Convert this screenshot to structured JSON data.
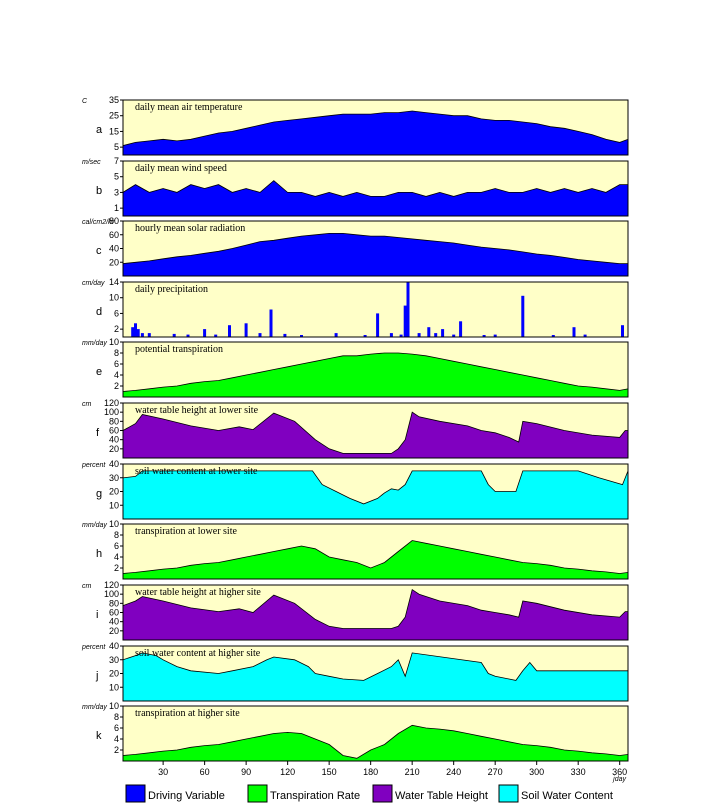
{
  "chart_data": {
    "type": "area",
    "x_axis": {
      "ticks": [
        30,
        60,
        90,
        120,
        150,
        180,
        210,
        240,
        270,
        300,
        330,
        360
      ],
      "label": "jday",
      "range": [
        1,
        366
      ]
    },
    "panels": [
      {
        "letter": "a",
        "title": "daily mean air temperature",
        "unit": "C",
        "yticks": [
          5,
          15,
          25,
          35
        ],
        "ylim": [
          0,
          35
        ],
        "color": "#0000ff",
        "kind": "area",
        "x": [
          1,
          10,
          20,
          30,
          40,
          50,
          60,
          70,
          80,
          90,
          100,
          110,
          120,
          130,
          140,
          150,
          160,
          170,
          180,
          190,
          200,
          210,
          220,
          230,
          240,
          250,
          260,
          270,
          280,
          290,
          300,
          310,
          320,
          330,
          340,
          350,
          360,
          366
        ],
        "values": [
          6,
          8,
          9,
          10,
          9,
          10,
          12,
          14,
          15,
          17,
          19,
          21,
          22,
          23,
          24,
          25,
          26,
          26,
          26,
          27,
          27,
          28,
          27,
          26,
          25,
          25,
          23,
          22,
          22,
          21,
          20,
          18,
          17,
          15,
          13,
          10,
          8,
          10
        ]
      },
      {
        "letter": "b",
        "title": "daily mean wind speed",
        "unit": "m/sec",
        "yticks": [
          1,
          3,
          5,
          7
        ],
        "ylim": [
          0,
          7
        ],
        "color": "#0000ff",
        "kind": "area",
        "x": [
          1,
          10,
          20,
          30,
          40,
          50,
          60,
          70,
          80,
          90,
          100,
          110,
          120,
          130,
          140,
          150,
          160,
          170,
          180,
          190,
          200,
          210,
          220,
          230,
          240,
          250,
          260,
          270,
          280,
          290,
          300,
          310,
          320,
          330,
          340,
          350,
          360,
          366
        ],
        "values": [
          3,
          4,
          3,
          3.5,
          3,
          4,
          3.5,
          4,
          3,
          3.5,
          3,
          4.5,
          3,
          3,
          2.5,
          3,
          2.5,
          3,
          2.5,
          2.5,
          3,
          3,
          2.5,
          3,
          2.5,
          3,
          3,
          3.5,
          3,
          3,
          3.5,
          3,
          3.5,
          3,
          3.5,
          3,
          4,
          4
        ]
      },
      {
        "letter": "c",
        "title": "hourly mean solar radiation",
        "unit": "cal/cm2/hr",
        "yticks": [
          20,
          40,
          60,
          80
        ],
        "ylim": [
          0,
          80
        ],
        "color": "#0000ff",
        "kind": "area",
        "x": [
          1,
          10,
          20,
          30,
          40,
          50,
          60,
          70,
          80,
          90,
          100,
          110,
          120,
          130,
          140,
          150,
          160,
          170,
          180,
          190,
          200,
          210,
          220,
          230,
          240,
          250,
          260,
          270,
          280,
          290,
          300,
          310,
          320,
          330,
          340,
          350,
          360,
          366
        ],
        "values": [
          18,
          20,
          22,
          25,
          28,
          30,
          33,
          36,
          40,
          45,
          50,
          52,
          55,
          58,
          60,
          62,
          62,
          60,
          58,
          58,
          56,
          54,
          52,
          50,
          48,
          45,
          42,
          40,
          38,
          35,
          32,
          30,
          27,
          24,
          22,
          20,
          18,
          18
        ]
      },
      {
        "letter": "d",
        "title": "daily precipitation",
        "unit": "cm/day",
        "yticks": [
          2,
          6,
          10,
          14
        ],
        "ylim": [
          0,
          14
        ],
        "color": "#0000ff",
        "kind": "bars",
        "x": [
          8,
          10,
          12,
          15,
          20,
          38,
          48,
          60,
          68,
          78,
          90,
          100,
          108,
          118,
          130,
          155,
          176,
          185,
          195,
          202,
          205,
          207,
          215,
          222,
          227,
          232,
          240,
          245,
          262,
          270,
          290,
          312,
          327,
          335,
          362
        ],
        "values": [
          2.5,
          3.5,
          2,
          1,
          1,
          0.8,
          0.6,
          2,
          0.6,
          3,
          3.5,
          1,
          7,
          0.8,
          0.5,
          1,
          0.5,
          6,
          1,
          0.6,
          8,
          14,
          1,
          2.5,
          1,
          2,
          0.6,
          4,
          0.5,
          0.6,
          10.5,
          0.5,
          2.5,
          0.6,
          3
        ]
      },
      {
        "letter": "e",
        "title": "potential transpiration",
        "unit": "mm/day",
        "yticks": [
          2,
          4,
          6,
          8,
          10
        ],
        "ylim": [
          0,
          10
        ],
        "color": "#00ff00",
        "kind": "area",
        "x": [
          1,
          10,
          20,
          30,
          40,
          50,
          60,
          70,
          80,
          90,
          100,
          110,
          120,
          130,
          140,
          150,
          160,
          170,
          180,
          190,
          200,
          210,
          220,
          230,
          240,
          250,
          260,
          270,
          280,
          290,
          300,
          310,
          320,
          330,
          340,
          350,
          360,
          366
        ],
        "values": [
          1,
          1.2,
          1.5,
          1.8,
          2,
          2.5,
          2.8,
          3,
          3.5,
          4,
          4.5,
          5,
          5.5,
          6,
          6.5,
          7,
          7.5,
          7.5,
          7.8,
          8,
          8,
          7.8,
          7.5,
          7,
          6.5,
          6,
          5.5,
          5,
          4.5,
          4,
          3.5,
          3,
          2.5,
          2,
          1.8,
          1.5,
          1.2,
          1.5
        ]
      },
      {
        "letter": "f",
        "title": "water table height at lower site",
        "unit": "cm",
        "yticks": [
          20,
          40,
          60,
          80,
          100,
          120
        ],
        "ylim": [
          0,
          120
        ],
        "color": "#8000c0",
        "kind": "area",
        "x": [
          1,
          10,
          15,
          30,
          50,
          70,
          85,
          95,
          110,
          125,
          140,
          150,
          160,
          175,
          185,
          195,
          200,
          205,
          210,
          215,
          230,
          250,
          260,
          270,
          280,
          287,
          290,
          300,
          320,
          340,
          360,
          364,
          366
        ],
        "values": [
          60,
          75,
          95,
          85,
          70,
          60,
          68,
          62,
          98,
          80,
          40,
          20,
          10,
          10,
          10,
          10,
          20,
          40,
          100,
          90,
          80,
          70,
          60,
          55,
          45,
          35,
          80,
          75,
          60,
          50,
          45,
          60,
          60
        ]
      },
      {
        "letter": "g",
        "title": "soil water content at lower site",
        "unit": "percent",
        "yticks": [
          10,
          20,
          30,
          40
        ],
        "ylim": [
          0,
          40
        ],
        "color": "#00ffff",
        "kind": "area",
        "x": [
          1,
          10,
          15,
          100,
          110,
          138,
          145,
          155,
          165,
          175,
          185,
          190,
          195,
          200,
          205,
          210,
          260,
          265,
          270,
          285,
          290,
          300,
          330,
          345,
          362,
          366
        ],
        "values": [
          30,
          31,
          35,
          35,
          35,
          35,
          25,
          20,
          15,
          11,
          15,
          19,
          22,
          21,
          25,
          35,
          35,
          25,
          20,
          20,
          35,
          35,
          35,
          30,
          25,
          35
        ]
      },
      {
        "letter": "h",
        "title": "transpiration at lower site",
        "unit": "mm/day",
        "yticks": [
          2,
          4,
          6,
          8,
          10
        ],
        "ylim": [
          0,
          10
        ],
        "color": "#00ff00",
        "kind": "area",
        "x": [
          1,
          10,
          20,
          30,
          40,
          50,
          60,
          70,
          80,
          90,
          100,
          110,
          120,
          130,
          140,
          150,
          160,
          170,
          180,
          190,
          200,
          210,
          220,
          230,
          240,
          250,
          260,
          270,
          280,
          290,
          300,
          310,
          320,
          330,
          340,
          350,
          360,
          366
        ],
        "values": [
          1,
          1.2,
          1.5,
          1.8,
          2,
          2.5,
          2.8,
          3,
          3.5,
          4,
          4.5,
          5,
          5.5,
          6,
          5.5,
          4,
          3.5,
          3,
          2,
          3,
          5,
          7,
          6.5,
          6,
          5.5,
          5,
          4.5,
          4,
          3.5,
          3,
          2.8,
          2.5,
          2,
          1.8,
          1.5,
          1.3,
          1,
          1.2
        ]
      },
      {
        "letter": "i",
        "title": "water table height at higher site",
        "unit": "cm",
        "yticks": [
          20,
          40,
          60,
          80,
          100,
          120
        ],
        "ylim": [
          0,
          120
        ],
        "color": "#8000c0",
        "kind": "area",
        "x": [
          1,
          10,
          15,
          30,
          50,
          70,
          85,
          95,
          110,
          125,
          140,
          150,
          160,
          175,
          185,
          195,
          200,
          205,
          210,
          215,
          230,
          250,
          260,
          270,
          280,
          287,
          290,
          300,
          320,
          340,
          360,
          364,
          366
        ],
        "values": [
          75,
          85,
          95,
          85,
          70,
          62,
          68,
          60,
          98,
          80,
          45,
          30,
          25,
          25,
          25,
          25,
          30,
          50,
          110,
          100,
          85,
          75,
          65,
          60,
          55,
          50,
          85,
          80,
          65,
          55,
          50,
          62,
          62
        ]
      },
      {
        "letter": "j",
        "title": "soil water content at higher site",
        "unit": "percent",
        "yticks": [
          10,
          20,
          30,
          40
        ],
        "ylim": [
          0,
          40
        ],
        "color": "#00ffff",
        "kind": "area",
        "x": [
          1,
          10,
          15,
          25,
          30,
          40,
          50,
          70,
          80,
          95,
          105,
          110,
          125,
          135,
          140,
          150,
          160,
          175,
          185,
          195,
          200,
          205,
          210,
          260,
          265,
          270,
          280,
          285,
          290,
          295,
          300,
          320,
          340,
          360,
          366
        ],
        "values": [
          30,
          33,
          35,
          33,
          30,
          25,
          22,
          20,
          22,
          25,
          30,
          32,
          30,
          25,
          20,
          18,
          16,
          15,
          20,
          25,
          30,
          18,
          35,
          28,
          20,
          18,
          16,
          15,
          22,
          28,
          22,
          22,
          22,
          22,
          22
        ]
      },
      {
        "letter": "k",
        "title": "transpiration at higher site",
        "unit": "mm/day",
        "yticks": [
          2,
          4,
          6,
          8,
          10
        ],
        "ylim": [
          0,
          10
        ],
        "color": "#00ff00",
        "kind": "area",
        "x": [
          1,
          10,
          20,
          30,
          40,
          50,
          60,
          70,
          80,
          90,
          100,
          110,
          120,
          130,
          140,
          150,
          160,
          170,
          180,
          190,
          200,
          210,
          220,
          230,
          240,
          250,
          260,
          270,
          280,
          290,
          300,
          310,
          320,
          330,
          340,
          350,
          360,
          366
        ],
        "values": [
          1,
          1.2,
          1.5,
          1.8,
          2,
          2.5,
          2.8,
          3,
          3.5,
          4,
          4.5,
          5,
          5.2,
          5,
          4,
          3,
          1,
          0.5,
          2,
          3,
          5,
          6.5,
          6,
          5.8,
          5.5,
          5,
          4.5,
          4,
          3.5,
          3,
          2.8,
          2.5,
          2,
          1.8,
          1.5,
          1.3,
          1,
          1.2
        ]
      }
    ],
    "legend": [
      {
        "label": "Driving Variable",
        "color": "#0000ff"
      },
      {
        "label": "Transpiration Rate",
        "color": "#00ff00"
      },
      {
        "label": "Water Table Height",
        "color": "#8000c0"
      },
      {
        "label": "Soil Water Content",
        "color": "#00ffff"
      }
    ],
    "background": "#ffffc8"
  }
}
